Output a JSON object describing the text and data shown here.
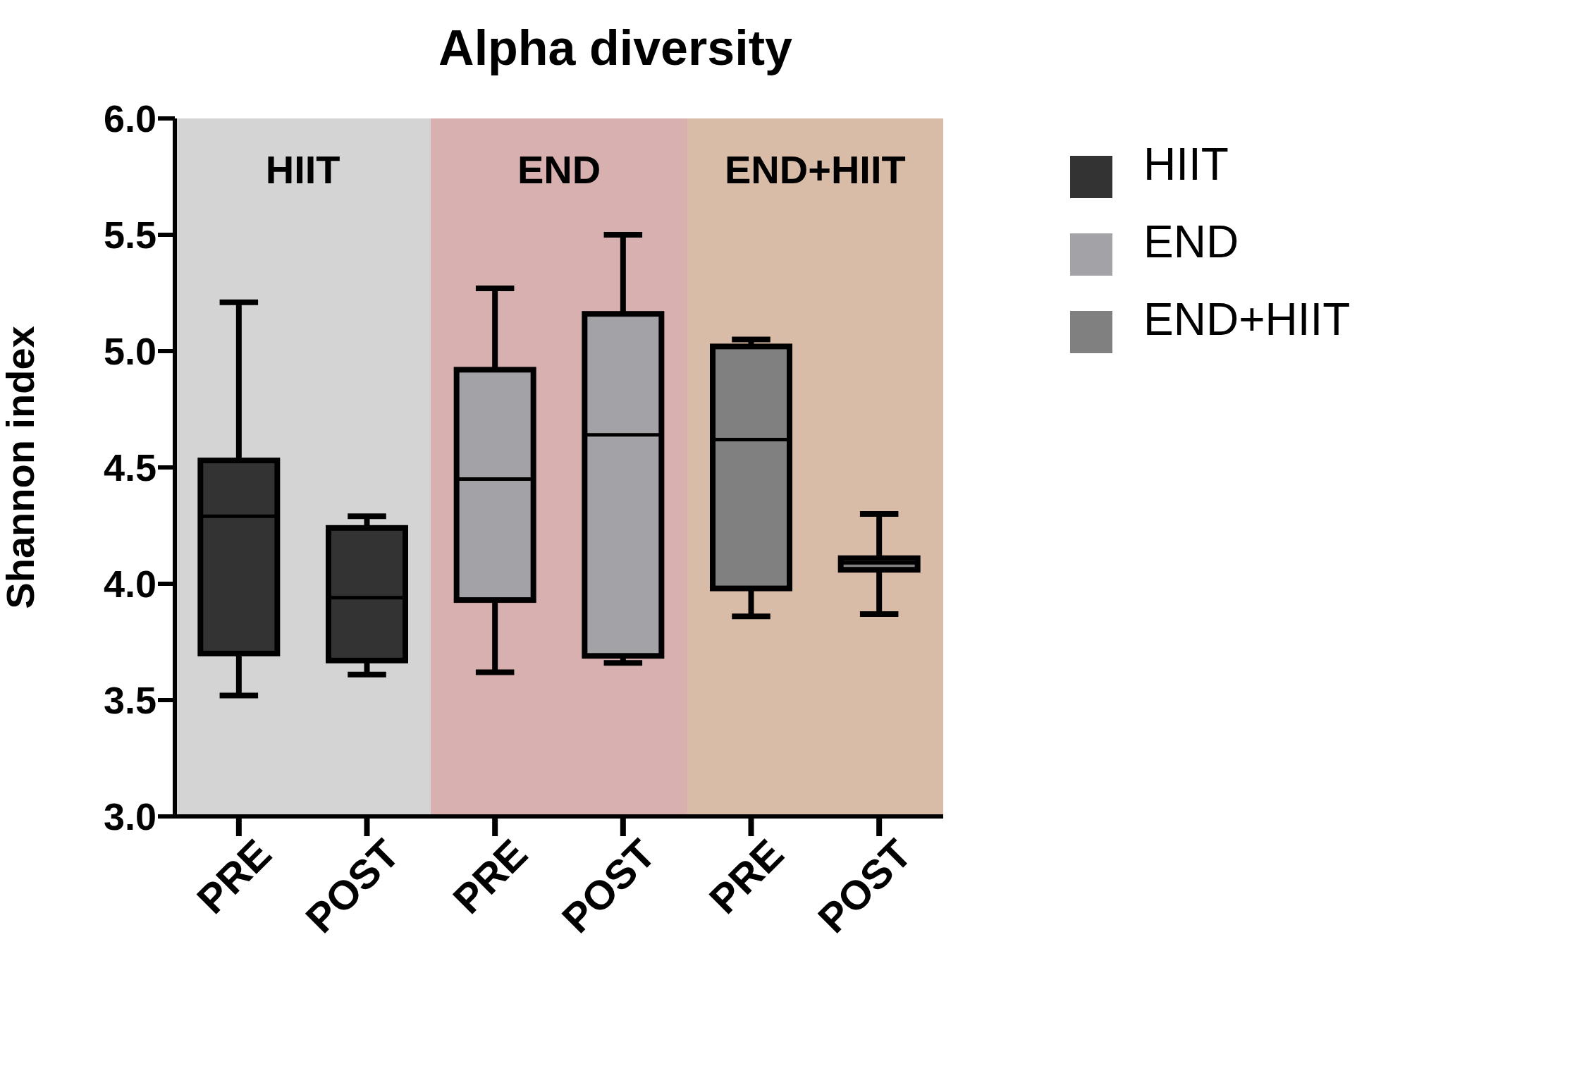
{
  "chart_data": {
    "type": "box",
    "title": "Alpha diversity",
    "ylabel": "Shannon index",
    "categories": [
      "PRE",
      "POST",
      "PRE",
      "POST",
      "PRE",
      "POST"
    ],
    "ylim": [
      3.0,
      6.0
    ],
    "yticks": [
      {
        "value": 3.0,
        "label": "3.0"
      },
      {
        "value": 3.5,
        "label": "3.5"
      },
      {
        "value": 4.0,
        "label": "4.0"
      },
      {
        "value": 4.5,
        "label": "4.5"
      },
      {
        "value": 5.0,
        "label": "5.0"
      },
      {
        "value": 5.5,
        "label": "5.5"
      },
      {
        "value": 6.0,
        "label": "6.0"
      }
    ],
    "annotations": [
      "HIIT",
      "END",
      "END+HIIT"
    ],
    "legend": "top right",
    "series": [
      {
        "name": "HIIT",
        "color": "#333333",
        "boxes": [
          {
            "low": 3.52,
            "q1": 3.7,
            "median": 4.29,
            "q3": 4.53,
            "high": 5.21
          },
          {
            "low": 3.61,
            "q1": 3.67,
            "median": 3.94,
            "q3": 4.24,
            "high": 4.29
          },
          null,
          null,
          null,
          null
        ]
      },
      {
        "name": "END",
        "color": "#a3a2a7",
        "boxes": [
          null,
          null,
          {
            "low": 3.62,
            "q1": 3.93,
            "median": 4.45,
            "q3": 4.92,
            "high": 5.27
          },
          {
            "low": 3.66,
            "q1": 3.69,
            "median": 4.64,
            "q3": 5.16,
            "high": 5.5
          },
          null,
          null
        ]
      },
      {
        "name": "END+HIIT",
        "color": "#808080",
        "boxes": [
          null,
          null,
          null,
          null,
          {
            "low": 3.86,
            "q1": 3.98,
            "median": 4.62,
            "q3": 5.02,
            "high": 5.05
          },
          {
            "low": 3.87,
            "q1": 4.06,
            "median": 4.09,
            "q3": 4.11,
            "high": 4.3
          }
        ]
      }
    ]
  }
}
